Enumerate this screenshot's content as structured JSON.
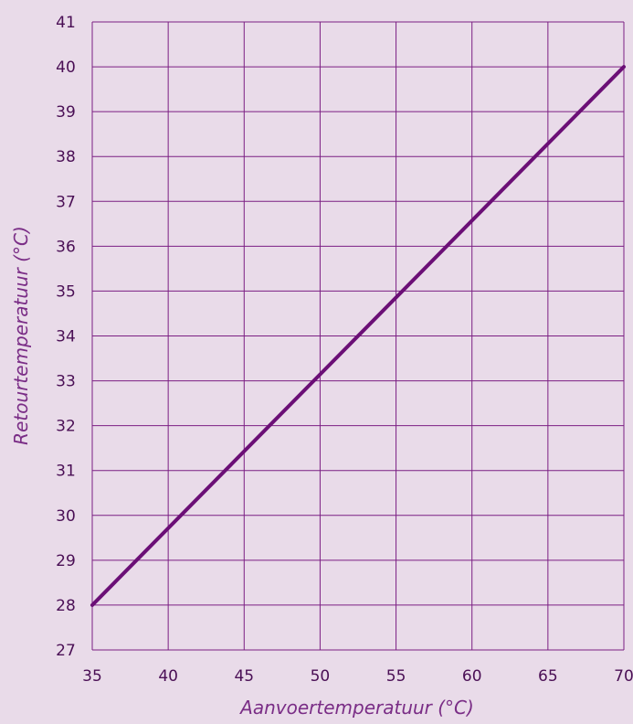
{
  "colors": {
    "background": "#e9dbe9",
    "grid": "#7b1f83",
    "line": "#6b0f76",
    "tick_text": "#4a0f55",
    "axis_title": "#7a2d86"
  },
  "chart_data": {
    "type": "line",
    "xlabel": "Aanvoertemperatuur (°C)",
    "ylabel": "Retourtemperatuur (°C)",
    "xlim": [
      35,
      70
    ],
    "ylim": [
      27,
      41
    ],
    "xticks": [
      35,
      40,
      45,
      50,
      55,
      60,
      65,
      70
    ],
    "yticks": [
      27,
      28,
      29,
      30,
      31,
      32,
      33,
      34,
      35,
      36,
      37,
      38,
      39,
      40,
      41
    ],
    "grid": true,
    "series": [
      {
        "x": [
          35,
          70
        ],
        "y": [
          28,
          40
        ]
      }
    ]
  }
}
